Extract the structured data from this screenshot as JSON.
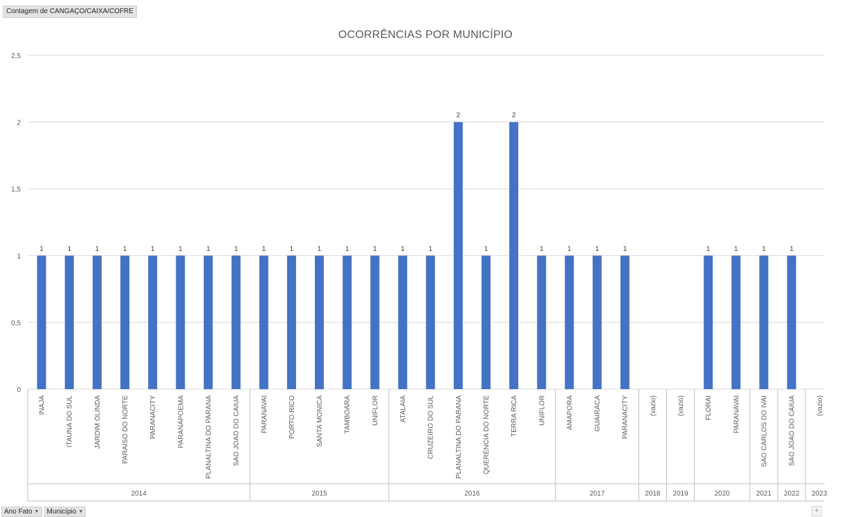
{
  "field_tag": "Contagem de CANGAÇO/CAIXA/COFRE",
  "filters": [
    {
      "label": "Ano Fato",
      "icon": "dropdown-caret-icon"
    },
    {
      "label": "Município",
      "icon": "dropdown-caret-icon"
    }
  ],
  "expand_icon": "plus-icon",
  "expand_label": "+",
  "colors": {
    "bar": "#4472c4",
    "grid": "#d9d9d9",
    "axis": "#bfbfbf",
    "text": "#595959"
  },
  "chart_data": {
    "type": "bar",
    "title": "OCORRÊNCIAS POR MUNICÍPIO",
    "xlabel": "",
    "ylabel": "",
    "ylim": [
      0,
      2.5
    ],
    "yticks": [
      "0",
      "0,5",
      "1",
      "1,5",
      "2",
      "2,5"
    ],
    "grid": true,
    "legend": "none",
    "categories": [
      {
        "year": "2014",
        "label": "INAJA",
        "value": 1
      },
      {
        "year": "2014",
        "label": "ITAUNA DO SUL",
        "value": 1
      },
      {
        "year": "2014",
        "label": "JARDIM OLINDA",
        "value": 1
      },
      {
        "year": "2014",
        "label": "PARAISO DO NORTE",
        "value": 1
      },
      {
        "year": "2014",
        "label": "PARANACITY",
        "value": 1
      },
      {
        "year": "2014",
        "label": "PARANAPOEMA",
        "value": 1
      },
      {
        "year": "2014",
        "label": "PLANALTINA DO PARANA",
        "value": 1
      },
      {
        "year": "2014",
        "label": "SAO JOAO DO CAIUA",
        "value": 1
      },
      {
        "year": "2015",
        "label": "PARANAVAI",
        "value": 1
      },
      {
        "year": "2015",
        "label": "PORTO RICO",
        "value": 1
      },
      {
        "year": "2015",
        "label": "SANTA MONICA",
        "value": 1
      },
      {
        "year": "2015",
        "label": "TAMBOARA",
        "value": 1
      },
      {
        "year": "2015",
        "label": "UNIFLOR",
        "value": 1
      },
      {
        "year": "2016",
        "label": "ATALAIA",
        "value": 1
      },
      {
        "year": "2016",
        "label": "CRUZEIRO DO SUL",
        "value": 1
      },
      {
        "year": "2016",
        "label": "PLANALTINA DO PARANA",
        "value": 2
      },
      {
        "year": "2016",
        "label": "QUERENCIA DO NORTE",
        "value": 1
      },
      {
        "year": "2016",
        "label": "TERRA RICA",
        "value": 2
      },
      {
        "year": "2016",
        "label": "UNIFLOR",
        "value": 1
      },
      {
        "year": "2017",
        "label": "AMAPORA",
        "value": 1
      },
      {
        "year": "2017",
        "label": "GUAIRACA",
        "value": 1
      },
      {
        "year": "2017",
        "label": "PARANACITY",
        "value": 1
      },
      {
        "year": "2018",
        "label": "(vazio)",
        "value": null
      },
      {
        "year": "2019",
        "label": "(vazio)",
        "value": null
      },
      {
        "year": "2020",
        "label": "FLORAI",
        "value": 1
      },
      {
        "year": "2020",
        "label": "PARANAVAI",
        "value": 1
      },
      {
        "year": "2021",
        "label": "SAO CARLOS DO IVAI",
        "value": 1
      },
      {
        "year": "2022",
        "label": "SAO JOAO DO CAIUA",
        "value": 1
      },
      {
        "year": "2023",
        "label": "(vazio)",
        "value": null
      }
    ],
    "years": [
      "2014",
      "2015",
      "2016",
      "2017",
      "2018",
      "2019",
      "2020",
      "2021",
      "2022",
      "2023"
    ]
  }
}
